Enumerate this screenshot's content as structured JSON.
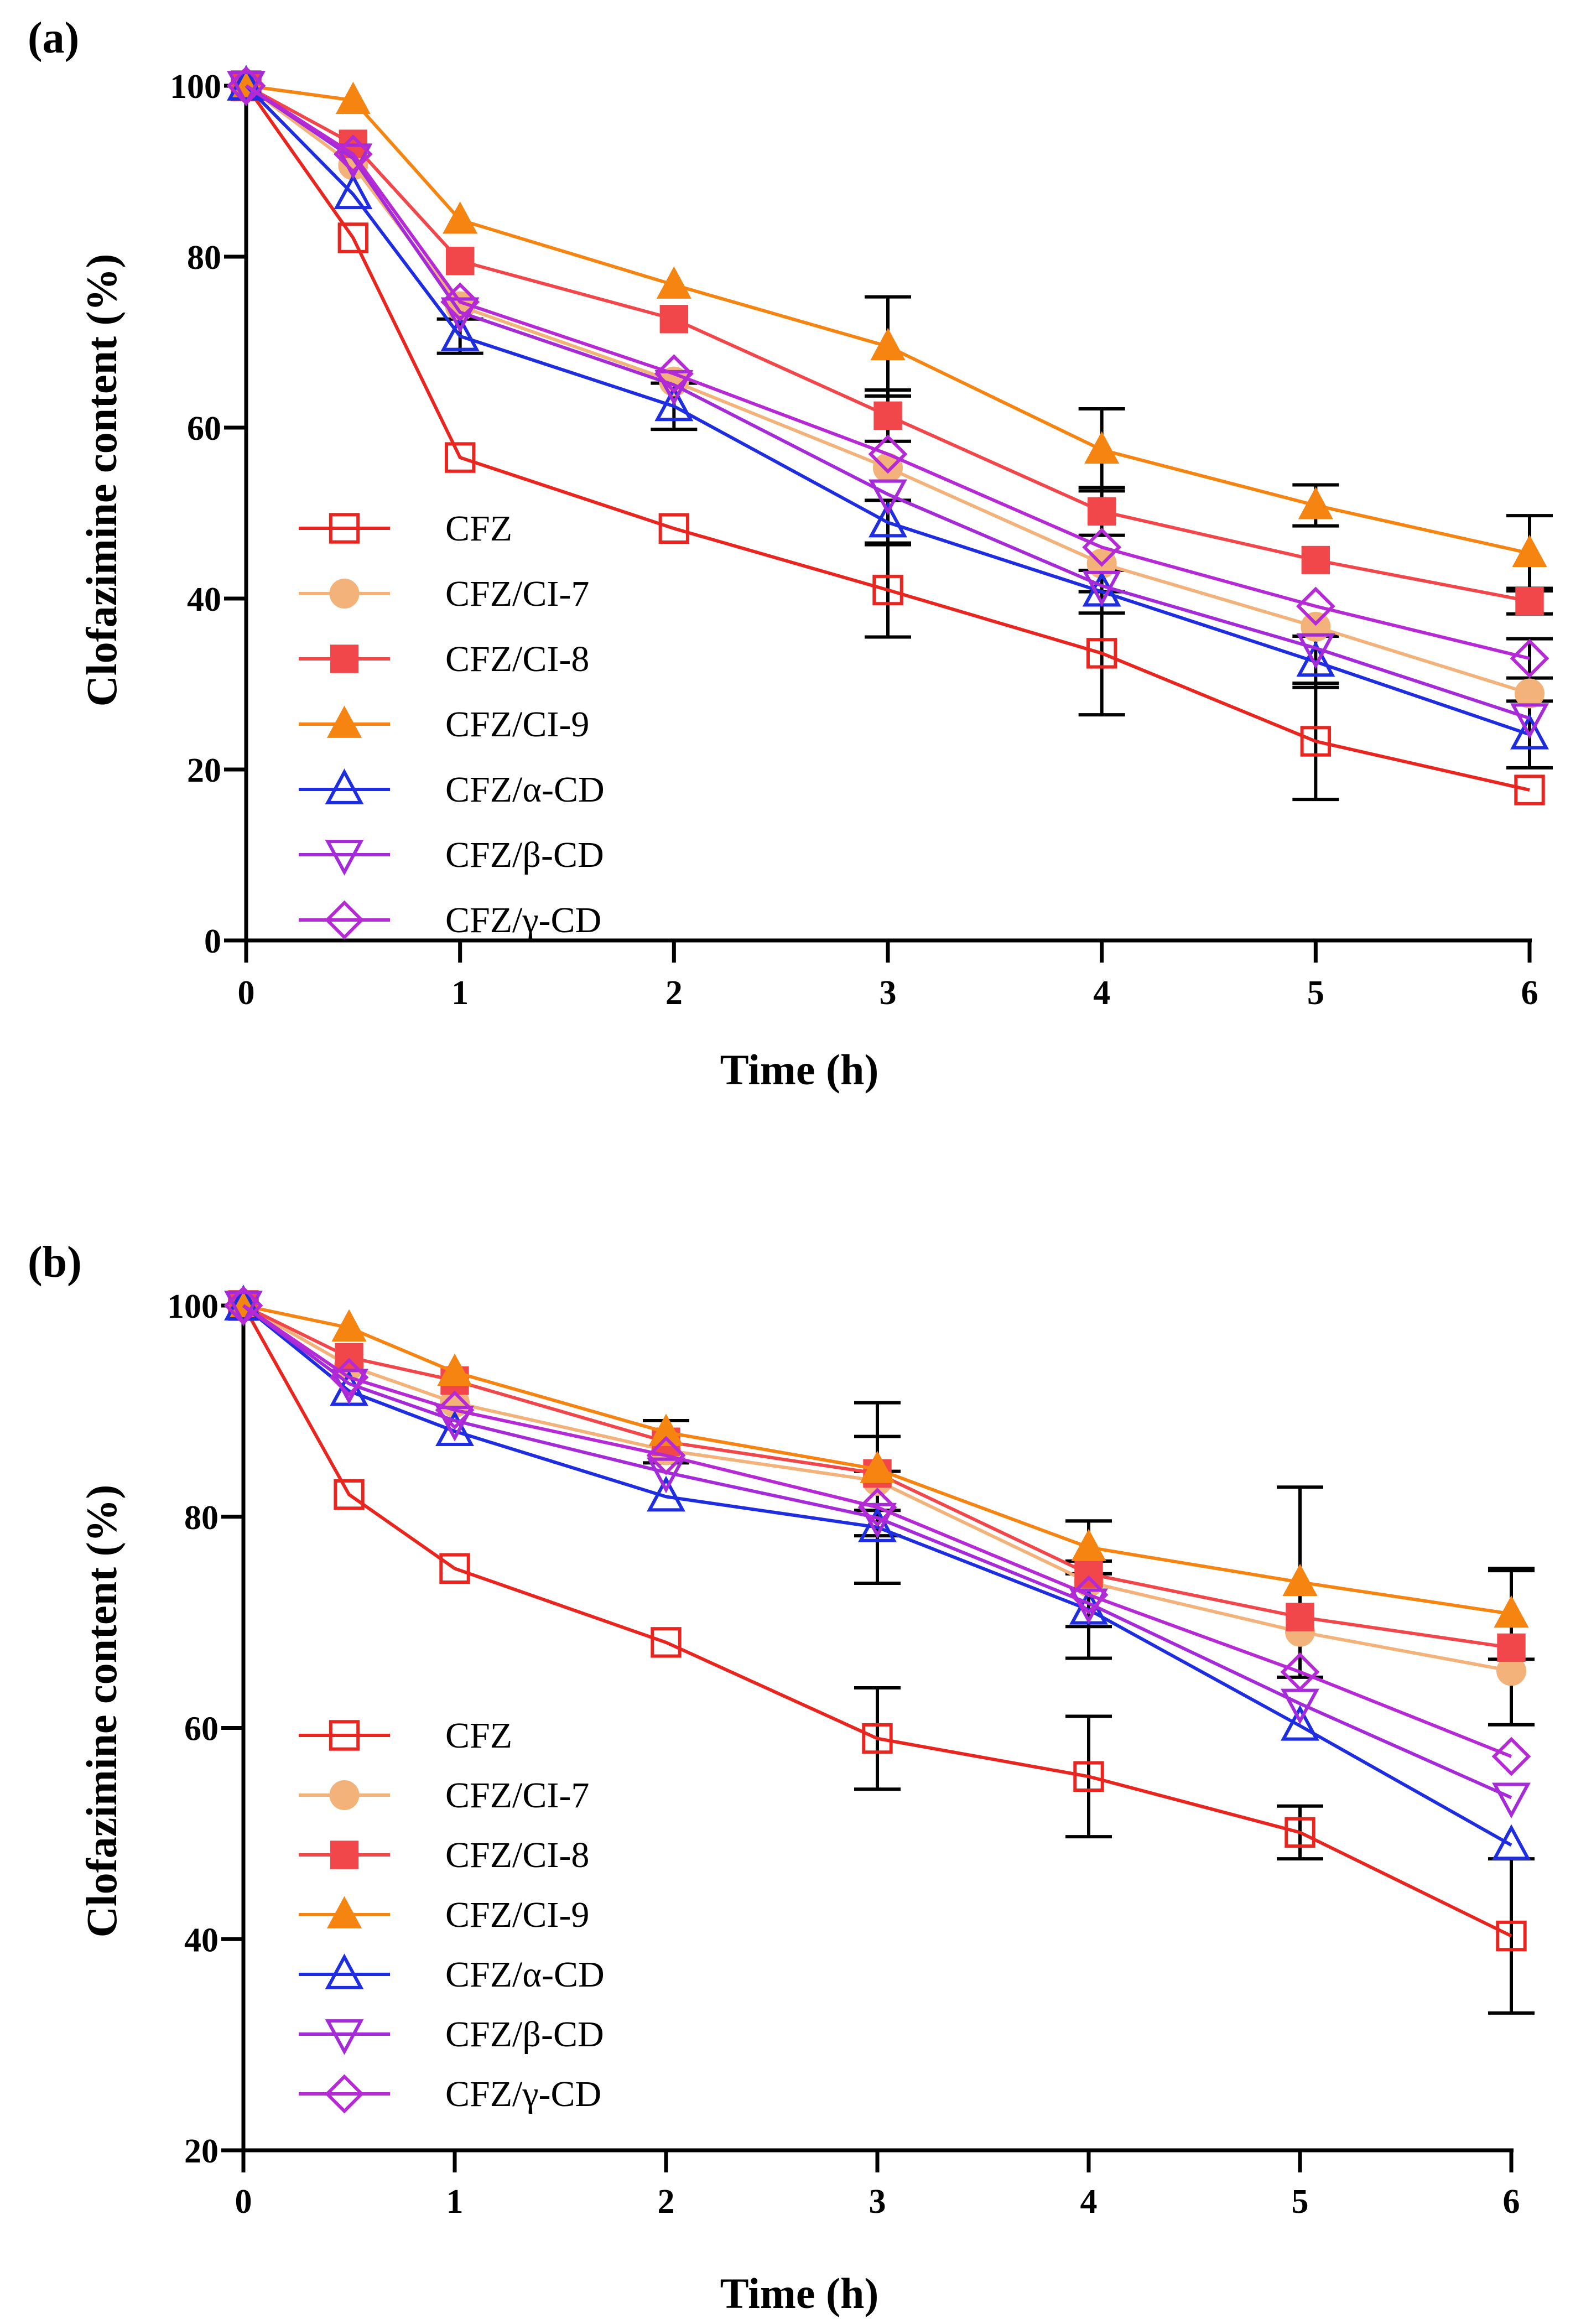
{
  "figure": {
    "panels": [
      {
        "label": "(a)",
        "xlabel": "Time (h)",
        "ylabel": "Clofazimine content (%)"
      },
      {
        "label": "(b)",
        "xlabel": "Time (h)",
        "ylabel": "Clofazimine content (%)"
      }
    ]
  },
  "series_styles": [
    {
      "name": "CFZ",
      "color": "#e8251f",
      "marker": "open-square"
    },
    {
      "name": "CFZ/CI-7",
      "color": "#f2b27a",
      "marker": "filled-circle"
    },
    {
      "name": "CFZ/CI-8",
      "color": "#f2474a",
      "marker": "filled-square"
    },
    {
      "name": "CFZ/CI-9",
      "color": "#f58410",
      "marker": "filled-triangle"
    },
    {
      "name": "CFZ/α-CD",
      "color": "#1f2de0",
      "marker": "open-triangle"
    },
    {
      "name": "CFZ/β-CD",
      "color": "#a52ad8",
      "marker": "open-triangle-down"
    },
    {
      "name": "CFZ/γ-CD",
      "color": "#b62ad6",
      "marker": "open-diamond"
    }
  ],
  "chart_data": [
    {
      "type": "line",
      "title": "(a)",
      "xlabel": "Time (h)",
      "ylabel": "Clofazimine content (%)",
      "xlim": [
        0,
        6
      ],
      "ylim": [
        0,
        100
      ],
      "xticks": [
        "0",
        "1",
        "2",
        "3",
        "4",
        "5",
        "6"
      ],
      "yticks": [
        "0",
        "20",
        "40",
        "60",
        "80",
        "100"
      ],
      "legend": "middle-left",
      "x": [
        0,
        0.5,
        1,
        2,
        3,
        4,
        5,
        6
      ],
      "series": [
        {
          "name": "CFZ",
          "values": [
            100,
            82.2,
            56.5,
            48.2,
            41.0,
            33.6,
            23.3,
            17.6
          ],
          "errors": [
            0,
            0,
            0,
            0,
            5.5,
            7.2,
            6.8,
            0
          ]
        },
        {
          "name": "CFZ/CI-7",
          "values": [
            100,
            90.7,
            74.2,
            65.4,
            55.3,
            44.1,
            36.7,
            28.9
          ],
          "errors": [
            0,
            0,
            0,
            0,
            0,
            0,
            0,
            0
          ]
        },
        {
          "name": "CFZ/CI-8",
          "values": [
            100,
            93.2,
            79.5,
            72.7,
            61.4,
            50.2,
            44.5,
            39.7
          ],
          "errors": [
            0,
            0,
            0,
            0,
            3.0,
            2.8,
            0,
            1.5
          ]
        },
        {
          "name": "CFZ/CI-9",
          "values": [
            100,
            98.3,
            84.3,
            76.7,
            69.5,
            57.4,
            50.9,
            45.3
          ],
          "errors": [
            0,
            0,
            0,
            0,
            5.8,
            4.8,
            2.4,
            4.4
          ]
        },
        {
          "name": "CFZ/α-CD",
          "values": [
            100,
            87.3,
            70.7,
            62.5,
            48.9,
            40.8,
            32.6,
            24.1
          ],
          "errors": [
            0,
            0,
            2.0,
            2.7,
            2.6,
            2.5,
            3.0,
            3.9
          ]
        },
        {
          "name": "CFZ/β-CD",
          "values": [
            100,
            91.5,
            73.5,
            65.0,
            52.2,
            41.5,
            34.2,
            26.0
          ],
          "errors": [
            0,
            0,
            0,
            0,
            0,
            0,
            0,
            0
          ]
        },
        {
          "name": "CFZ/γ-CD",
          "values": [
            100,
            92.0,
            74.7,
            66.3,
            56.9,
            46.0,
            39.1,
            33.0
          ],
          "errors": [
            0,
            0,
            0,
            0,
            0,
            0,
            0,
            2.3
          ]
        }
      ]
    },
    {
      "type": "line",
      "title": "(b)",
      "xlabel": "Time (h)",
      "ylabel": "Clofazimine content (%)",
      "xlim": [
        0,
        6
      ],
      "ylim": [
        20,
        100
      ],
      "xticks": [
        "0",
        "1",
        "2",
        "3",
        "4",
        "5",
        "6"
      ],
      "yticks": [
        "20",
        "40",
        "60",
        "80",
        "100"
      ],
      "legend": "lower-left",
      "x": [
        0,
        0.5,
        1,
        2,
        3,
        4,
        5,
        6
      ],
      "series": [
        {
          "name": "CFZ",
          "values": [
            100,
            82.1,
            75.1,
            68.1,
            59.0,
            55.4,
            50.1,
            40.3
          ],
          "errors": [
            0,
            0,
            0,
            0,
            4.8,
            5.7,
            2.5,
            7.3
          ]
        },
        {
          "name": "CFZ/CI-7",
          "values": [
            100,
            94.3,
            90.8,
            86.3,
            83.4,
            73.8,
            69.1,
            65.4
          ],
          "errors": [
            0,
            0,
            0,
            0,
            0,
            0,
            0,
            0
          ]
        },
        {
          "name": "CFZ/CI-8",
          "values": [
            100,
            95.1,
            92.9,
            87.1,
            84.1,
            74.6,
            70.5,
            67.6
          ],
          "errors": [
            0,
            0,
            0,
            2.0,
            3.5,
            5.0,
            0,
            7.3
          ]
        },
        {
          "name": "CFZ/CI-9",
          "values": [
            100,
            97.9,
            93.7,
            88.0,
            84.5,
            77.1,
            73.8,
            70.8
          ],
          "errors": [
            0,
            0,
            0,
            0,
            6.3,
            2.5,
            9.0,
            4.3
          ]
        },
        {
          "name": "CFZ/α-CD",
          "values": [
            100,
            91.9,
            88.1,
            81.9,
            79.0,
            71.2,
            60.2,
            48.9
          ],
          "errors": [
            0,
            0,
            0,
            0,
            5.3,
            4.6,
            0,
            0
          ]
        },
        {
          "name": "CFZ/β-CD",
          "values": [
            100,
            92.6,
            89.1,
            84.2,
            79.9,
            71.8,
            62.3,
            53.4
          ],
          "errors": [
            0,
            0,
            0,
            0,
            0,
            0,
            0,
            0
          ]
        },
        {
          "name": "CFZ/γ-CD",
          "values": [
            100,
            93.2,
            90.1,
            85.8,
            80.9,
            72.6,
            65.3,
            57.3
          ],
          "errors": [
            0,
            0,
            0,
            0,
            0,
            0,
            0,
            0
          ]
        }
      ]
    }
  ]
}
